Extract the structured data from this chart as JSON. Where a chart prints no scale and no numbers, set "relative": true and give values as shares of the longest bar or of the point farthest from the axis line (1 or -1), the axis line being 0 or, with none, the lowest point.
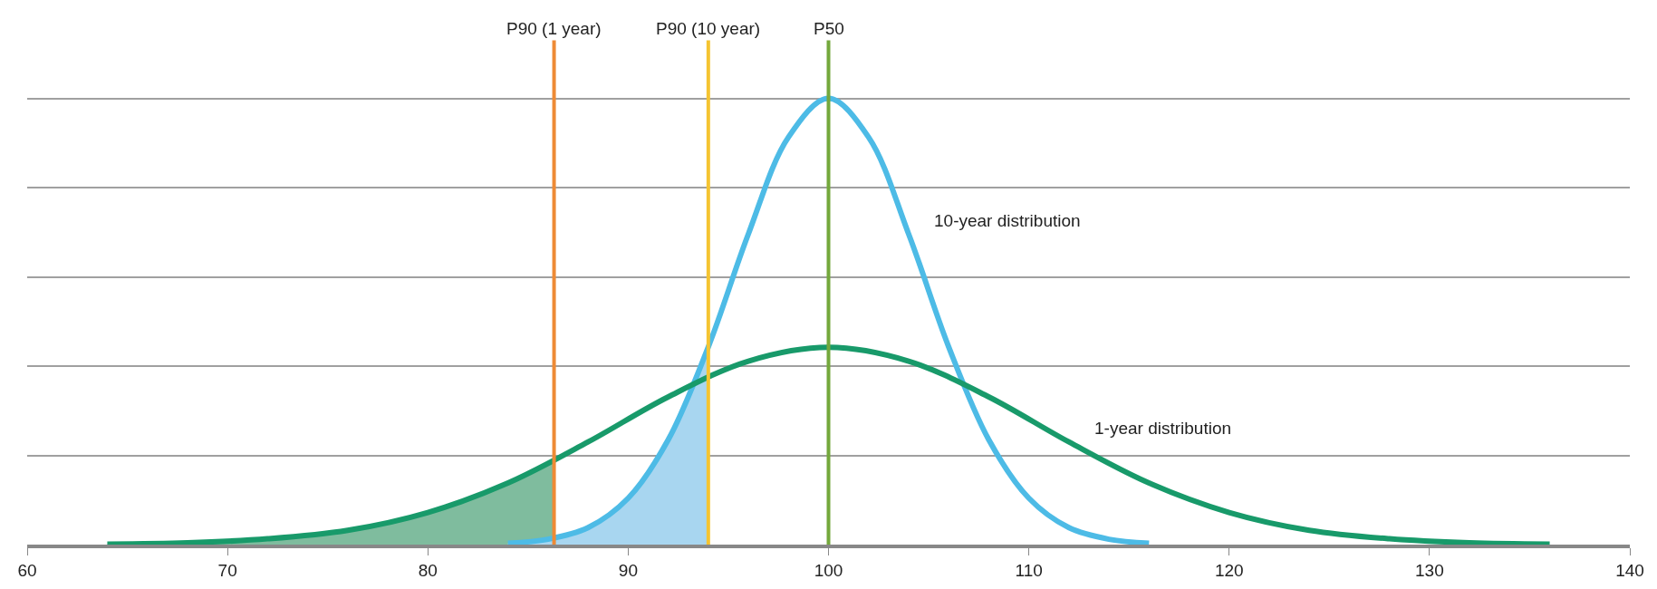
{
  "chart_data": {
    "type": "line",
    "relative": true,
    "xlim": [
      60,
      140
    ],
    "xticks": [
      60,
      70,
      80,
      90,
      100,
      110,
      120,
      130,
      140
    ],
    "grid": "y",
    "legend": false,
    "marker": "none",
    "tick_labels": "x",
    "series": [
      {
        "type": "area",
        "color": "#7fbc9e",
        "x": [
          64,
          68,
          72,
          76,
          80,
          84,
          86.3
        ],
        "values": [
          0.001,
          0.004,
          0.013,
          0.032,
          0.072,
          0.138,
          0.189
        ]
      },
      {
        "type": "area",
        "color": "#a8d6f0",
        "x": [
          84,
          86,
          88,
          90,
          92,
          94
        ],
        "values": [
          0.003,
          0.012,
          0.038,
          0.104,
          0.235,
          0.443
        ]
      },
      {
        "name": "10-year distribution",
        "color": "#4dbbe6",
        "x": [
          84,
          86,
          88,
          90,
          92,
          94,
          96,
          98,
          100,
          102,
          104,
          106,
          108,
          110,
          112,
          114,
          116
        ],
        "values": [
          0.003,
          0.012,
          0.038,
          0.104,
          0.235,
          0.443,
          0.696,
          0.913,
          1,
          0.913,
          0.696,
          0.443,
          0.235,
          0.104,
          0.038,
          0.012,
          0.003
        ]
      },
      {
        "name": "1-year distribution",
        "color": "#189a6a",
        "x": [
          64,
          68,
          72,
          76,
          80,
          84,
          88,
          92,
          96,
          100,
          104,
          108,
          112,
          116,
          120,
          124,
          128,
          132,
          136
        ],
        "values": [
          0.001,
          0.004,
          0.013,
          0.032,
          0.072,
          0.138,
          0.23,
          0.331,
          0.411,
          0.442,
          0.411,
          0.331,
          0.23,
          0.138,
          0.072,
          0.032,
          0.013,
          0.004,
          0.001
        ]
      }
    ],
    "ref_lines": [
      {
        "axis": "x",
        "value": 86.3,
        "label": "P90 (1 year)",
        "color": "#ee8a35"
      },
      {
        "axis": "x",
        "value": 94,
        "label": "P90 (10 year)",
        "color": "#f5c431"
      },
      {
        "axis": "x",
        "value": 100,
        "label": "P50",
        "color": "#74a83c"
      }
    ]
  }
}
